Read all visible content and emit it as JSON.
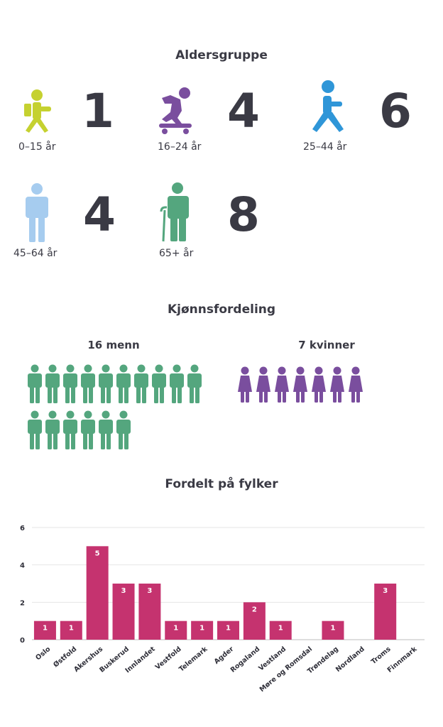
{
  "age_section": {
    "title": "Aldersgruppe",
    "groups": [
      {
        "label": "0–15 år",
        "count": "1",
        "icon": "child-icon",
        "color": "#c5d130"
      },
      {
        "label": "16–24 år",
        "count": "4",
        "icon": "skateboarder-icon",
        "color": "#7a4e9e"
      },
      {
        "label": "25–44 år",
        "count": "6",
        "icon": "walking-person-icon",
        "color": "#2f96d8"
      },
      {
        "label": "45–64 år",
        "count": "4",
        "icon": "standing-person-icon",
        "color": "#a6ccef"
      },
      {
        "label": "65+ år",
        "count": "8",
        "icon": "elderly-cane-icon",
        "color": "#54a67e"
      }
    ]
  },
  "gender_section": {
    "title": "Kjønnsfordeling",
    "men": {
      "label": "16 menn",
      "count": 16,
      "icon": "man-icon",
      "color": "#54a67e"
    },
    "women": {
      "label": "7 kvinner",
      "count": 7,
      "icon": "woman-icon",
      "color": "#7a4e9e"
    }
  },
  "county_section": {
    "title": "Fordelt på fylker"
  },
  "chart_data": {
    "type": "bar",
    "categories": [
      "Oslo",
      "Østfold",
      "Akershus",
      "Buskerud",
      "Innlandet",
      "Vestfold",
      "Telemark",
      "Agder",
      "Rogaland",
      "Vestland",
      "Møre og Romsdal",
      "Trøndelag",
      "Nordland",
      "Troms",
      "Finnmark"
    ],
    "values": [
      1,
      1,
      5,
      3,
      3,
      1,
      1,
      1,
      2,
      1,
      0,
      1,
      0,
      3,
      0
    ],
    "ylim": [
      0,
      6
    ],
    "yticks": [
      0,
      2,
      4,
      6
    ],
    "bar_color": "#c5336f",
    "grid": true,
    "data_labels": true
  }
}
